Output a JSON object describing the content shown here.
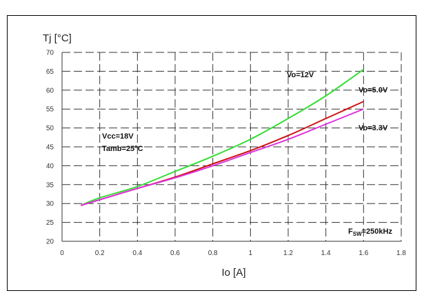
{
  "chart_data": {
    "type": "line",
    "ylabel": "Tj [°C]",
    "xlabel": "Io [A]",
    "xlim": [
      0,
      1.8
    ],
    "ylim": [
      20,
      70
    ],
    "xticks": [
      "0",
      "0.2",
      "0.4",
      "0.6",
      "0.8",
      "1",
      "1.2",
      "1.4",
      "1.6",
      "1.8"
    ],
    "yticks": [
      "20",
      "25",
      "30",
      "35",
      "40",
      "45",
      "50",
      "55",
      "60",
      "65",
      "70"
    ],
    "grid": true,
    "series": [
      {
        "name": "Vo=12V",
        "color": "#33dd33",
        "x": [
          0.1,
          0.2,
          0.4,
          0.6,
          0.8,
          1.0,
          1.2,
          1.4,
          1.6
        ],
        "y": [
          29.5,
          31.5,
          34.5,
          38.5,
          42.5,
          47.0,
          52.5,
          58.5,
          65.5
        ]
      },
      {
        "name": "Vo=5.0V",
        "color": "#cc1111",
        "x": [
          0.1,
          0.2,
          0.4,
          0.6,
          0.8,
          1.0,
          1.2,
          1.4,
          1.6
        ],
        "y": [
          29.5,
          31.0,
          34.0,
          37.0,
          40.5,
          44.0,
          48.0,
          52.5,
          57.0
        ]
      },
      {
        "name": "Vo=3.3V",
        "color": "#dd33dd",
        "x": [
          0.1,
          0.2,
          0.4,
          0.6,
          0.8,
          1.0,
          1.2,
          1.4,
          1.6
        ],
        "y": [
          29.5,
          31.0,
          34.0,
          36.8,
          40.0,
          43.5,
          47.0,
          51.0,
          55.0
        ]
      }
    ],
    "annotations": {
      "vcc": "Vcc=18V",
      "tamb": "Tamb=25°C",
      "fsw_main": "F",
      "fsw_sub": "SW",
      "fsw_value": "=250kHz"
    }
  }
}
